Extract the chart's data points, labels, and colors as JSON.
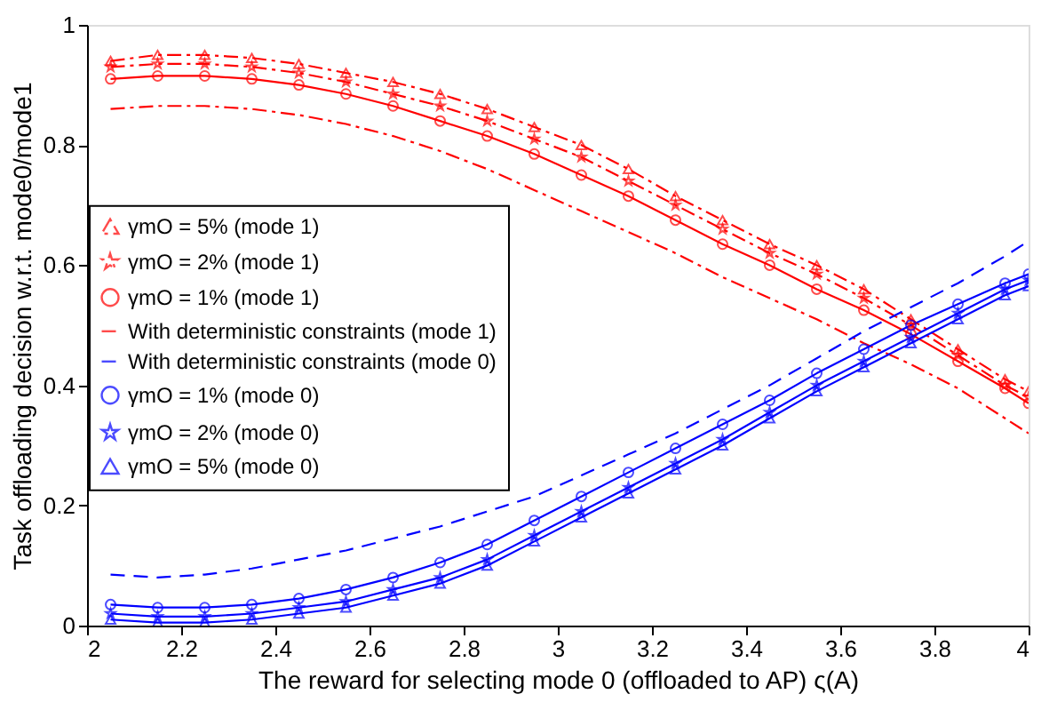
{
  "chart_data": {
    "type": "line",
    "xlabel": "The reward for selecting mode 0 (offloaded to AP) ς(A)",
    "ylabel": "Task offloading decision w.r.t. mode0/mode1",
    "x": [
      2.05,
      2.15,
      2.25,
      2.35,
      2.45,
      2.55,
      2.65,
      2.75,
      2.85,
      2.95,
      3.05,
      3.15,
      3.25,
      3.35,
      3.45,
      3.55,
      3.65,
      3.75,
      3.85,
      3.95,
      4.0
    ],
    "series": [
      {
        "name": "γmO = 5% (mode 1)",
        "color": "#ff0000",
        "marker": "triangle",
        "line_style": "dashdot",
        "values": [
          0.94,
          0.95,
          0.95,
          0.945,
          0.935,
          0.92,
          0.905,
          0.885,
          0.86,
          0.83,
          0.8,
          0.76,
          0.715,
          0.675,
          0.635,
          0.6,
          0.56,
          0.51,
          0.46,
          0.41,
          0.39
        ]
      },
      {
        "name": "γmO = 2% (mode 1)",
        "color": "#ff0000",
        "marker": "star",
        "line_style": "dashdot",
        "values": [
          0.93,
          0.935,
          0.935,
          0.93,
          0.92,
          0.905,
          0.885,
          0.865,
          0.84,
          0.81,
          0.78,
          0.74,
          0.7,
          0.66,
          0.62,
          0.585,
          0.545,
          0.5,
          0.45,
          0.4,
          0.38
        ]
      },
      {
        "name": "γmO = 1% (mode 1)",
        "color": "#ff0000",
        "marker": "circle",
        "line_style": "solid",
        "values": [
          0.91,
          0.915,
          0.915,
          0.91,
          0.9,
          0.885,
          0.865,
          0.84,
          0.815,
          0.785,
          0.75,
          0.715,
          0.675,
          0.635,
          0.6,
          0.56,
          0.525,
          0.485,
          0.44,
          0.395,
          0.37
        ]
      },
      {
        "name": "With deterministic constraints (mode 1)",
        "color": "#ff0000",
        "marker": "none",
        "line_style": "dashdot",
        "values": [
          0.86,
          0.865,
          0.865,
          0.86,
          0.85,
          0.835,
          0.815,
          0.79,
          0.76,
          0.725,
          0.69,
          0.655,
          0.62,
          0.58,
          0.545,
          0.51,
          0.47,
          0.435,
          0.395,
          0.345,
          0.32
        ]
      },
      {
        "name": "With deterministic constraints (mode 0)",
        "color": "#0000ff",
        "marker": "none",
        "line_style": "dashed",
        "values": [
          0.085,
          0.08,
          0.085,
          0.095,
          0.11,
          0.125,
          0.145,
          0.165,
          0.19,
          0.215,
          0.25,
          0.285,
          0.32,
          0.36,
          0.4,
          0.445,
          0.49,
          0.53,
          0.57,
          0.615,
          0.64
        ]
      },
      {
        "name": "γmO = 1% (mode 0)",
        "color": "#0000ff",
        "marker": "circle",
        "line_style": "solid",
        "values": [
          0.035,
          0.03,
          0.03,
          0.035,
          0.045,
          0.06,
          0.08,
          0.105,
          0.135,
          0.175,
          0.215,
          0.255,
          0.295,
          0.335,
          0.375,
          0.42,
          0.46,
          0.5,
          0.535,
          0.57,
          0.585
        ]
      },
      {
        "name": "γmO = 2% (mode 0)",
        "color": "#0000ff",
        "marker": "star",
        "line_style": "solid",
        "values": [
          0.02,
          0.015,
          0.015,
          0.02,
          0.03,
          0.04,
          0.06,
          0.08,
          0.11,
          0.15,
          0.19,
          0.23,
          0.27,
          0.31,
          0.355,
          0.4,
          0.44,
          0.48,
          0.52,
          0.56,
          0.575
        ]
      },
      {
        "name": "γmO = 5% (mode 0)",
        "color": "#0000ff",
        "marker": "triangle",
        "line_style": "solid",
        "values": [
          0.01,
          0.005,
          0.005,
          0.01,
          0.02,
          0.03,
          0.05,
          0.07,
          0.1,
          0.14,
          0.18,
          0.22,
          0.26,
          0.3,
          0.345,
          0.39,
          0.43,
          0.47,
          0.51,
          0.55,
          0.565
        ]
      }
    ],
    "xlim": [
      2,
      4
    ],
    "xticks": [
      2,
      2.2,
      2.4,
      2.6,
      2.8,
      3,
      3.2,
      3.4,
      3.6,
      3.8,
      4
    ],
    "ylim": [
      0,
      1
    ],
    "yticks": [
      0,
      0.2,
      0.4,
      0.6,
      0.8,
      1
    ],
    "grid": false,
    "legend": "left"
  }
}
